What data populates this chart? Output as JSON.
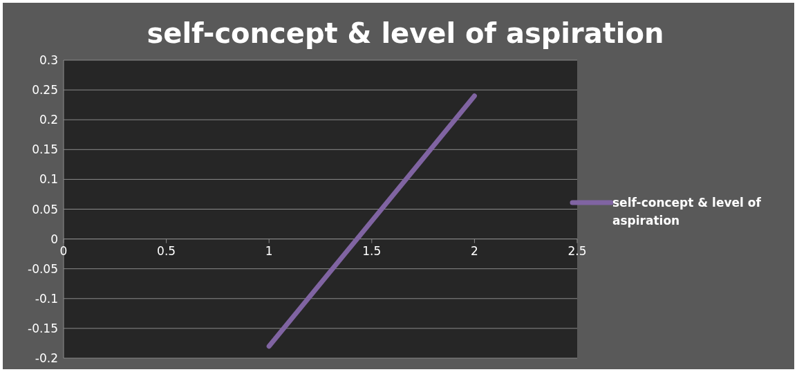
{
  "chart_data": {
    "type": "line",
    "title": "self-concept & level of aspiration",
    "x": [
      1,
      2
    ],
    "series": [
      {
        "name": "self-concept & level of aspiration",
        "color": "#8064a2",
        "values": [
          -0.18,
          0.24
        ]
      }
    ],
    "xlim": [
      0,
      2.5
    ],
    "xticks": [
      0,
      0.5,
      1,
      1.5,
      2,
      2.5
    ],
    "ylim": [
      -0.2,
      0.3
    ],
    "yticks": [
      -0.2,
      -0.15,
      -0.1,
      -0.05,
      0,
      0.05,
      0.1,
      0.15,
      0.2,
      0.25,
      0.3
    ],
    "grid": "y",
    "legend": "right",
    "marker": "none",
    "line_style": "solid"
  }
}
